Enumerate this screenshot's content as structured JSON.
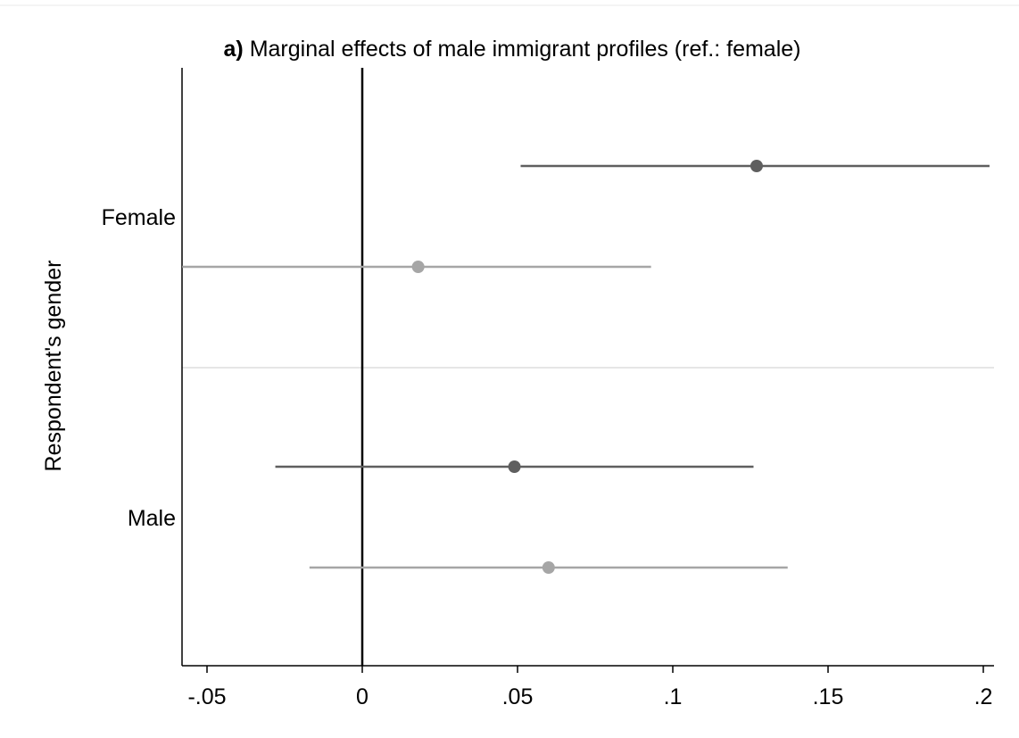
{
  "chart_data": {
    "type": "scatter",
    "title_prefix": "a)",
    "title": "Marginal effects of male immigrant profiles (ref.: female)",
    "ylabel": "Respondent's gender",
    "xlabel": "",
    "xlim": [
      -0.058,
      0.202
    ],
    "x_ticks": [
      -0.05,
      0,
      0.05,
      0.1,
      0.15,
      0.2
    ],
    "x_tick_labels": [
      "-.05",
      "0",
      ".05",
      ".1",
      ".15",
      ".2"
    ],
    "reference_line_x": 0,
    "grid": false,
    "legend": "none",
    "groups": [
      {
        "label": "Female",
        "estimates": [
          {
            "point": 0.127,
            "ci": [
              0.051,
              0.202
            ],
            "color": "#5f5f5f",
            "row": "upper"
          },
          {
            "point": 0.018,
            "ci": [
              -0.058,
              0.093
            ],
            "color": "#a6a6a6",
            "row": "lower"
          }
        ]
      },
      {
        "label": "Male",
        "estimates": [
          {
            "point": 0.049,
            "ci": [
              -0.028,
              0.126
            ],
            "color": "#5f5f5f",
            "row": "upper"
          },
          {
            "point": 0.06,
            "ci": [
              -0.017,
              0.137
            ],
            "color": "#a6a6a6",
            "row": "lower"
          }
        ]
      }
    ],
    "colors": {
      "dark_series": "#5f5f5f",
      "light_series": "#a6a6a6",
      "separator": "#e6e6e6",
      "axis": "#000000"
    }
  }
}
